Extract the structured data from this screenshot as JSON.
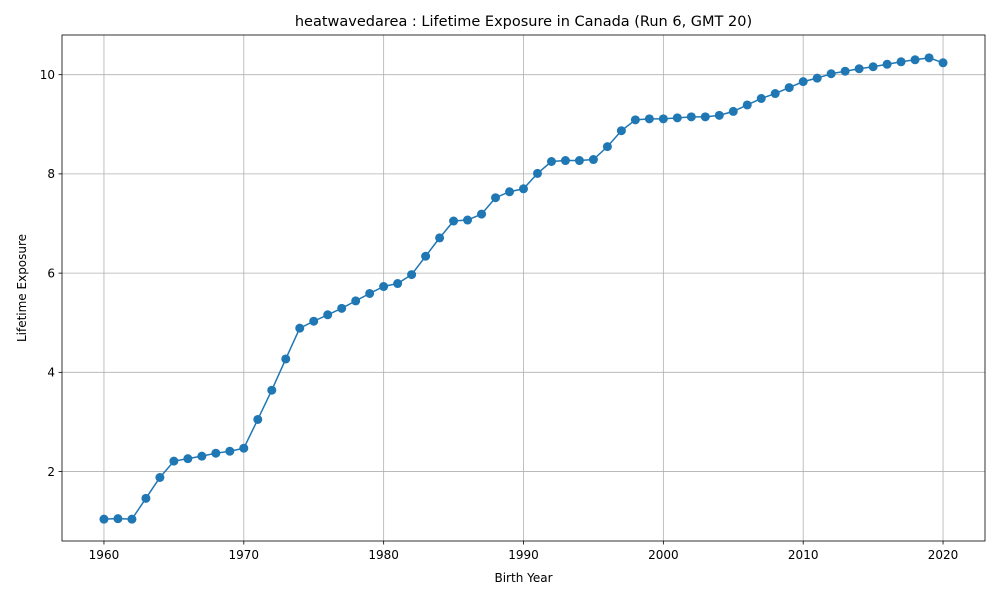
{
  "chart_data": {
    "type": "line",
    "title": "heatwavedarea : Lifetime Exposure in Canada (Run 6, GMT 20)",
    "xlabel": "Birth Year",
    "ylabel": "Lifetime Exposure",
    "xlim": [
      1957,
      2023
    ],
    "ylim": [
      0.6,
      10.8
    ],
    "xticks": [
      1960,
      1970,
      1980,
      1990,
      2000,
      2010,
      2020
    ],
    "yticks": [
      2,
      4,
      6,
      8,
      10
    ],
    "grid": true,
    "line_color": "#1f77b4",
    "marker": "circle",
    "series": [
      {
        "x": [
          1960,
          1961,
          1962,
          1963,
          1964,
          1965,
          1966,
          1967,
          1968,
          1969,
          1970,
          1971,
          1972,
          1973,
          1974,
          1975,
          1976,
          1977,
          1978,
          1979,
          1980,
          1981,
          1982,
          1983,
          1984,
          1985,
          1986,
          1987,
          1988,
          1989,
          1990,
          1991,
          1992,
          1993,
          1994,
          1995,
          1996,
          1997,
          1998,
          1999,
          2000,
          2001,
          2002,
          2003,
          2004,
          2005,
          2006,
          2007,
          2008,
          2009,
          2010,
          2011,
          2012,
          2013,
          2014,
          2015,
          2016,
          2017,
          2018,
          2019,
          2020
        ],
        "y": [
          1.04,
          1.05,
          1.04,
          1.46,
          1.88,
          2.21,
          2.26,
          2.31,
          2.37,
          2.41,
          2.47,
          3.05,
          3.64,
          4.27,
          4.89,
          5.03,
          5.16,
          5.29,
          5.44,
          5.59,
          5.73,
          5.79,
          5.97,
          6.34,
          6.71,
          7.05,
          7.07,
          7.19,
          7.52,
          7.64,
          7.7,
          8.01,
          8.25,
          8.27,
          8.27,
          8.29,
          8.55,
          8.87,
          9.09,
          9.11,
          9.11,
          9.13,
          9.15,
          9.15,
          9.18,
          9.26,
          9.39,
          9.52,
          9.62,
          9.74,
          9.86,
          9.93,
          10.02,
          10.07,
          10.12,
          10.16,
          10.21,
          10.26,
          10.3,
          10.34,
          10.24
        ]
      }
    ]
  }
}
